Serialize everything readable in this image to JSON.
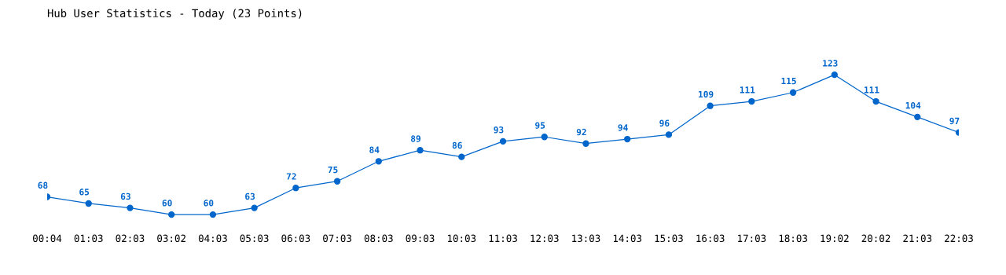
{
  "chart_data": {
    "type": "line",
    "title": "Hub User Statistics - Today (23 Points)",
    "categories": [
      "00:04",
      "01:03",
      "02:03",
      "03:02",
      "04:03",
      "05:03",
      "06:03",
      "07:03",
      "08:03",
      "09:03",
      "10:03",
      "11:03",
      "12:03",
      "13:03",
      "14:03",
      "15:03",
      "16:03",
      "17:03",
      "18:03",
      "19:02",
      "20:02",
      "21:03",
      "22:03"
    ],
    "series": [
      {
        "color": "#0066cc",
        "values": [
          68,
          65,
          63,
          60,
          60,
          63,
          72,
          75,
          84,
          89,
          86,
          93,
          95,
          92,
          94,
          96,
          109,
          111,
          115,
          123,
          111,
          104,
          97
        ]
      }
    ],
    "data_labels": true,
    "marker": "circle",
    "line_style": "solid",
    "grid": false,
    "legend": false,
    "tick_labels": "x"
  }
}
